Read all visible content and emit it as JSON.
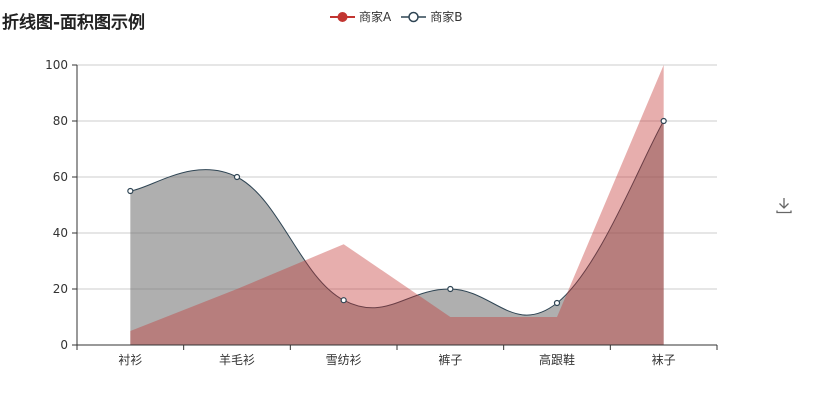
{
  "title": "折线图-面积图示例",
  "toolbox": {
    "download_icon": "download-icon"
  },
  "chart_data": {
    "type": "area",
    "title": "折线图-面积图示例",
    "categories": [
      "衬衫",
      "羊毛衫",
      "雪纺衫",
      "裤子",
      "高跟鞋",
      "袜子"
    ],
    "series": [
      {
        "name": "商家A",
        "values": [
          5,
          20,
          36,
          10,
          10,
          100
        ],
        "smooth": false,
        "line_color": "#c23531",
        "area_color": "#c23531",
        "area_opacity": 0.4,
        "show_symbols": false
      },
      {
        "name": "商家B",
        "values": [
          55,
          60,
          16,
          20,
          15,
          80
        ],
        "smooth": true,
        "line_color": "#2f4554",
        "area_color": "#6e6e6e",
        "area_opacity": 0.55,
        "show_symbols": true
      }
    ],
    "ylim": [
      0,
      100
    ],
    "yticks": [
      0,
      20,
      40,
      60,
      80,
      100
    ],
    "grid": true,
    "legend_position": "top-center"
  }
}
